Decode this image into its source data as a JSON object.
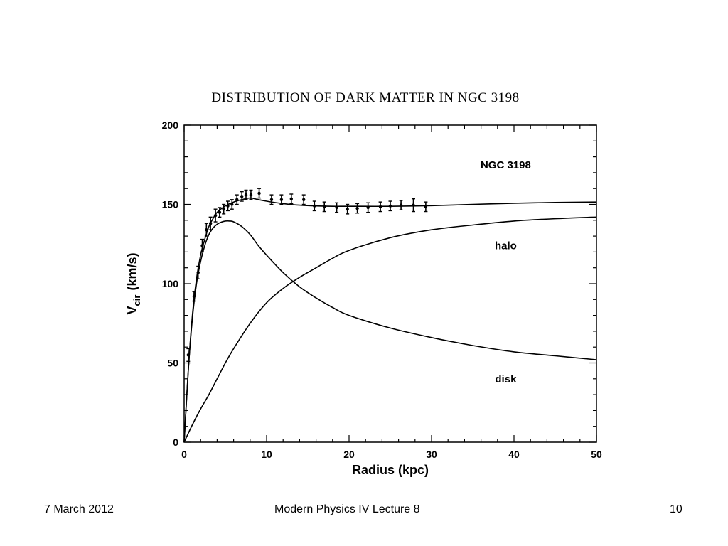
{
  "chart_data": {
    "type": "line",
    "title": "DISTRIBUTION OF DARK MATTER IN NGC 3198",
    "xlabel": "Radius (kpc)",
    "ylabel": "V_cir (km/s)",
    "ylabel_main": "V",
    "ylabel_sub": "cir",
    "ylabel_units": "(km/s)",
    "xlim": [
      0,
      50
    ],
    "ylim": [
      0,
      200
    ],
    "xticks": [
      0,
      10,
      20,
      30,
      40,
      50
    ],
    "yticks": [
      0,
      50,
      100,
      150,
      200
    ],
    "grid": false,
    "annotations": [
      {
        "text": "NGC 3198",
        "x": 39,
        "y": 175
      },
      {
        "text": "halo",
        "x": 39,
        "y": 124
      },
      {
        "text": "disk",
        "x": 39,
        "y": 40
      }
    ],
    "series": [
      {
        "name": "total",
        "x": [
          0,
          0.5,
          1,
          1.5,
          2,
          2.5,
          3,
          3.5,
          4,
          5,
          6,
          7,
          8,
          9,
          10,
          12,
          14,
          16,
          18,
          20,
          25,
          30,
          35,
          40,
          45,
          50
        ],
        "y": [
          0,
          45,
          80,
          103,
          118,
          128,
          136,
          141,
          145,
          149,
          151.5,
          153,
          154,
          153,
          152,
          150.5,
          149.5,
          149,
          148.8,
          148.8,
          148.8,
          149.2,
          150,
          150.7,
          151.2,
          151.5
        ]
      },
      {
        "name": "halo",
        "x": [
          0,
          1,
          2,
          3,
          4,
          5,
          6,
          8,
          10,
          12,
          14,
          16,
          18,
          20,
          25,
          30,
          35,
          40,
          45,
          50
        ],
        "y": [
          0,
          11,
          21,
          30,
          40,
          50,
          59,
          75,
          88,
          97,
          104,
          110,
          116,
          121,
          129,
          134,
          137,
          139.5,
          141,
          142
        ]
      },
      {
        "name": "disk",
        "x": [
          0,
          0.5,
          1,
          1.5,
          2,
          2.5,
          3,
          3.5,
          4,
          4.5,
          5,
          5.5,
          6,
          7,
          8,
          9,
          10,
          12,
          14,
          16,
          18,
          20,
          25,
          30,
          35,
          40,
          45,
          50
        ],
        "y": [
          0,
          45,
          78,
          100,
          114,
          124,
          131,
          135,
          137.5,
          138.8,
          139.5,
          139.5,
          139,
          136,
          131,
          124,
          118,
          107,
          98,
          91,
          85,
          80,
          72,
          66,
          61,
          57,
          54.5,
          52
        ]
      },
      {
        "name": "observed",
        "x": [
          0.5,
          1.2,
          1.7,
          2.2,
          2.7,
          3.2,
          3.8,
          4.3,
          4.8,
          5.3,
          5.8,
          6.4,
          7.0,
          7.5,
          8.1,
          9.1,
          10.6,
          11.8,
          13.0,
          14.5,
          15.8,
          17.0,
          18.5,
          19.8,
          21.0,
          22.3,
          23.8,
          25.0,
          26.3,
          27.8,
          29.3
        ],
        "y": [
          55,
          92,
          107,
          124,
          134,
          138,
          143,
          145,
          147,
          149,
          150,
          153,
          155,
          156,
          156,
          157,
          153,
          153,
          153.5,
          153,
          149,
          148.5,
          148,
          147,
          147.5,
          148,
          148.5,
          149,
          149.5,
          149.5,
          148.5
        ],
        "err": [
          4,
          3,
          4,
          4,
          4,
          4,
          4,
          3,
          3,
          3,
          3,
          3,
          3,
          3,
          3,
          3,
          3,
          3,
          3,
          3,
          3,
          3,
          3,
          3,
          3,
          3,
          3,
          3,
          3,
          4,
          3
        ]
      }
    ]
  },
  "footer": {
    "date": "7 March 2012",
    "title": "Modern Physics IV Lecture 8",
    "page": "10"
  }
}
